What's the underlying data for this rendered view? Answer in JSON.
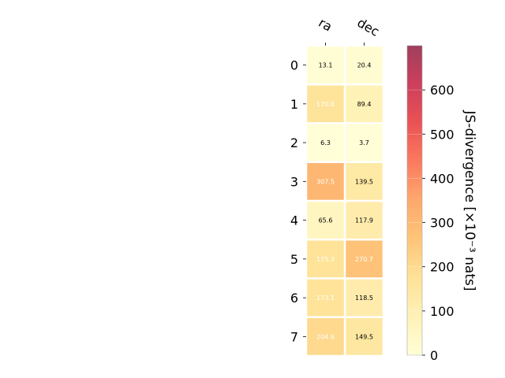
{
  "chart_data": {
    "type": "heatmap",
    "columns": [
      "ra",
      "dec"
    ],
    "rows": [
      "0",
      "1",
      "2",
      "3",
      "4",
      "5",
      "6",
      "7"
    ],
    "values": [
      [
        13.1,
        20.4
      ],
      [
        170.0,
        89.4
      ],
      [
        6.3,
        3.7
      ],
      [
        307.5,
        139.5
      ],
      [
        65.6,
        117.9
      ],
      [
        175.3,
        270.7
      ],
      [
        173.1,
        118.5
      ],
      [
        204.6,
        149.5
      ]
    ],
    "cell_labels": [
      [
        "13.1",
        "20.4"
      ],
      [
        "170.0",
        "89.4"
      ],
      [
        "6.3",
        "3.7"
      ],
      [
        "307.5",
        "139.5"
      ],
      [
        "65.6",
        "117.9"
      ],
      [
        "175.3",
        "270.7"
      ],
      [
        "173.1",
        "118.5"
      ],
      [
        "204.6",
        "149.5"
      ]
    ],
    "label_text_colors": [
      [
        "#000000",
        "#000000"
      ],
      [
        "#ffffff",
        "#000000"
      ],
      [
        "#000000",
        "#000000"
      ],
      [
        "#ffffff",
        "#000000"
      ],
      [
        "#000000",
        "#000000"
      ],
      [
        "#ffffff",
        "#ffffff"
      ],
      [
        "#ffffff",
        "#000000"
      ],
      [
        "#ffffff",
        "#000000"
      ]
    ],
    "colormap": "YlOrRd",
    "colorbar": {
      "label": "JS-divergence [×10⁻³ nats]",
      "range": [
        0,
        700
      ],
      "ticks": [
        0,
        100,
        200,
        300,
        400,
        500,
        600
      ],
      "tick_labels": [
        "0",
        "100",
        "200",
        "300",
        "400",
        "500",
        "600"
      ],
      "placement": "right"
    }
  }
}
